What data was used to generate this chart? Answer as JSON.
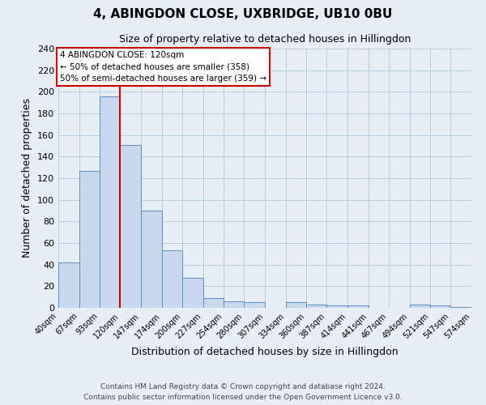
{
  "title1": "4, ABINGDON CLOSE, UXBRIDGE, UB10 0BU",
  "title2": "Size of property relative to detached houses in Hillingdon",
  "xlabel": "Distribution of detached houses by size in Hillingdon",
  "ylabel": "Number of detached properties",
  "bin_edges": [
    40,
    67,
    93,
    120,
    147,
    174,
    200,
    227,
    254,
    280,
    307,
    334,
    360,
    387,
    414,
    441,
    467,
    494,
    521,
    547,
    574
  ],
  "bar_heights": [
    42,
    127,
    196,
    151,
    90,
    53,
    28,
    9,
    6,
    5,
    0,
    5,
    3,
    2,
    2,
    0,
    0,
    3,
    2,
    1
  ],
  "bar_color": "#c9d9ed",
  "bar_edge_color": "#5b8ec4",
  "red_line_x": 120,
  "annotation_line0": "4 ABINGDON CLOSE: 120sqm",
  "annotation_line1": "← 50% of detached houses are smaller (358)",
  "annotation_line2": "50% of semi-detached houses are larger (359) →",
  "annotation_box_color": "#ffffff",
  "annotation_box_edge": "#cc0000",
  "grid_color": "#b8cfe0",
  "background_color": "#e8eef5",
  "ylim": [
    0,
    240
  ],
  "yticks": [
    0,
    20,
    40,
    60,
    80,
    100,
    120,
    140,
    160,
    180,
    200,
    220,
    240
  ],
  "footer1": "Contains HM Land Registry data © Crown copyright and database right 2024.",
  "footer2": "Contains public sector information licensed under the Open Government Licence v3.0."
}
